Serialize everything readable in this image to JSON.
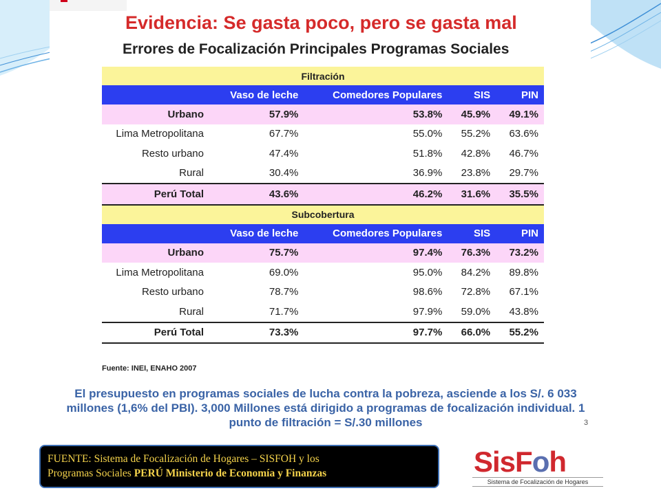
{
  "slide": {
    "title": "Evidencia: Se gasta poco, pero se gasta mal",
    "subtitle": "Errores de Focalización Principales Programas Sociales",
    "columns": [
      "Vaso de leche",
      "Comedores Populares",
      "SIS",
      "PIN"
    ],
    "sections": [
      {
        "name": "Filtración",
        "rows": [
          {
            "label": "Urbano",
            "values": [
              "57.9%",
              "53.8%",
              "45.9%",
              "49.1%"
            ]
          },
          {
            "label": "Lima Metropolitana",
            "values": [
              "67.7%",
              "55.0%",
              "55.2%",
              "63.6%"
            ]
          },
          {
            "label": "Resto urbano",
            "values": [
              "47.4%",
              "51.8%",
              "42.8%",
              "46.7%"
            ]
          },
          {
            "label": "Rural",
            "values": [
              "30.4%",
              "36.9%",
              "23.8%",
              "29.7%"
            ]
          },
          {
            "label": "Perú Total",
            "values": [
              "43.6%",
              "46.2%",
              "31.6%",
              "35.5%"
            ]
          }
        ]
      },
      {
        "name": "Subcobertura",
        "rows": [
          {
            "label": "Urbano",
            "values": [
              "75.7%",
              "97.4%",
              "76.3%",
              "73.2%"
            ]
          },
          {
            "label": "Lima Metropolitana",
            "values": [
              "69.0%",
              "95.0%",
              "84.2%",
              "89.8%"
            ]
          },
          {
            "label": "Resto urbano",
            "values": [
              "78.7%",
              "98.6%",
              "72.8%",
              "67.1%"
            ]
          },
          {
            "label": "Rural",
            "values": [
              "71.7%",
              "97.9%",
              "59.0%",
              "43.8%"
            ]
          },
          {
            "label": "Perú Total",
            "values": [
              "73.3%",
              "97.7%",
              "66.0%",
              "55.2%"
            ]
          }
        ]
      }
    ],
    "source": "Fuente: INEI, ENAHO 2007",
    "bottom_text": "El presupuesto en programas sociales de lucha contra la pobreza, asciende a los S/. 6 033 millones (1,6% del PBI). 3,000 Millones está dirigido a programas de focalización individual. 1 punto de filtración = S/.30 millones",
    "page_number": "3"
  },
  "footer": {
    "line1": "FUENTE: Sistema de Focalización de Hogares – SISFOH y los",
    "line2_regular": "Programas Sociales ",
    "line2_bold": "PERÚ Ministerio de Economía y Finanzas"
  },
  "logo": {
    "word_part1": "Sis",
    "word_part2": "F",
    "word_part3": "o",
    "word_part4": "h",
    "tagline": "Sistema de Focalización de Hogares"
  },
  "colors": {
    "title_red": "#d52a2a",
    "header_blue": "#2c3ef0",
    "section_yellow": "#fbf49a",
    "highlight_pink": "#fcd6f8",
    "bottom_text_blue": "#3a63a6",
    "footer_text_gold": "#f5d34b"
  }
}
